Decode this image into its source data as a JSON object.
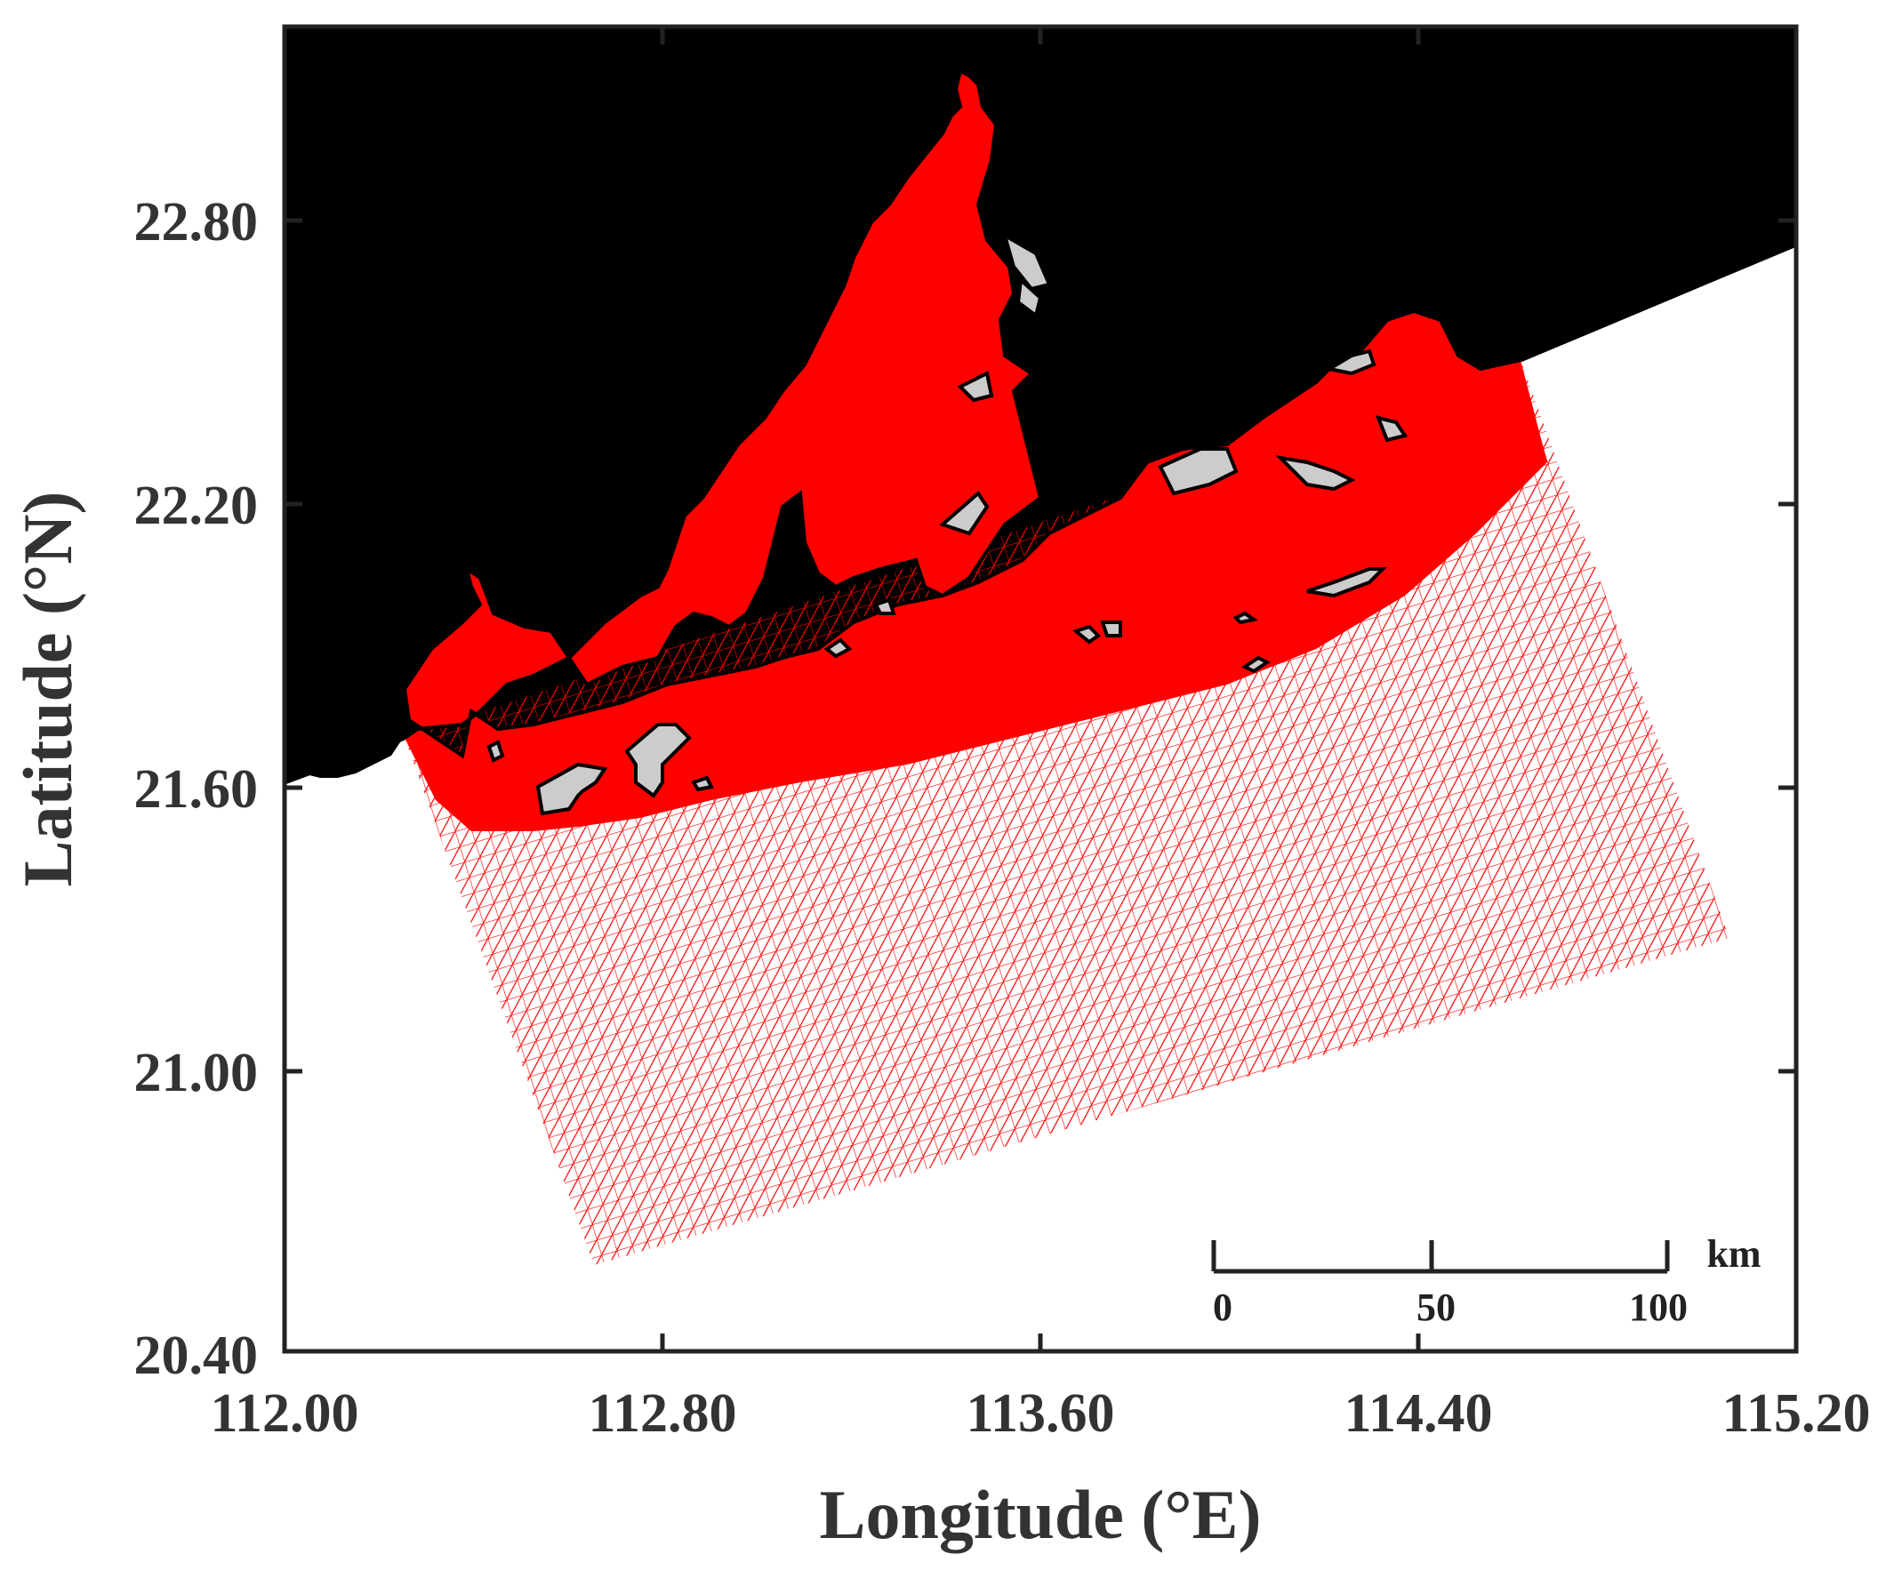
{
  "map": {
    "x_axis": {
      "label": "Longitude (°E)",
      "range": [
        112.0,
        115.2
      ],
      "ticks": [
        "112.00",
        "112.80",
        "113.60",
        "114.40",
        "115.20"
      ]
    },
    "y_axis": {
      "label": "Latitude (°N)",
      "range": [
        20.4,
        23.6
      ],
      "ticks": [
        "20.40",
        "21.00",
        "21.60",
        "22.20",
        "22.80"
      ]
    },
    "scale_bar": {
      "unit": "km",
      "labels": [
        "0",
        "50",
        "100"
      ]
    },
    "colors": {
      "land": "#cccccc",
      "mesh": "#ff0000",
      "coastline": "#000000",
      "frame": "#222222"
    }
  }
}
